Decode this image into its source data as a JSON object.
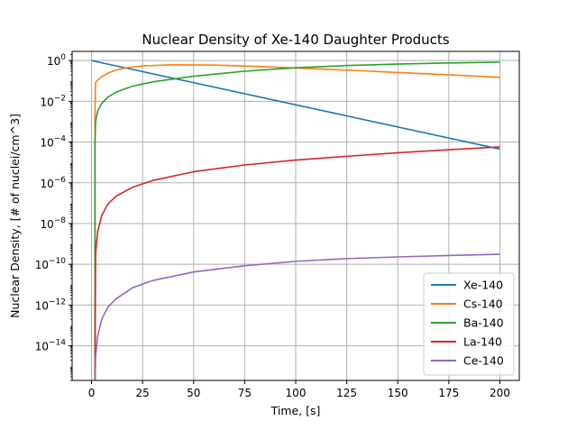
{
  "chart_data": {
    "type": "line",
    "title": "Nuclear Density of Xe-140 Daughter Products",
    "xlabel": "Time, [s]",
    "ylabel": "Nuclear Density, [# of nuclei/cm^3]",
    "xlim": [
      -9.5,
      209.5
    ],
    "ylim_log10": [
      -15.7,
      0.45
    ],
    "yscale": "log",
    "grid": true,
    "legend_position": "lower-right",
    "x_ticks": [
      {
        "value": 0,
        "label": "0"
      },
      {
        "value": 25,
        "label": "25"
      },
      {
        "value": 50,
        "label": "50"
      },
      {
        "value": 75,
        "label": "75"
      },
      {
        "value": 100,
        "label": "100"
      },
      {
        "value": 125,
        "label": "125"
      },
      {
        "value": 150,
        "label": "150"
      },
      {
        "value": 175,
        "label": "175"
      },
      {
        "value": 200,
        "label": "200"
      }
    ],
    "y_ticks": [
      {
        "exp": 0,
        "base": "10",
        "power": "0"
      },
      {
        "exp": -2,
        "base": "10",
        "power": "−2"
      },
      {
        "exp": -4,
        "base": "10",
        "power": "−4"
      },
      {
        "exp": -6,
        "base": "10",
        "power": "−6"
      },
      {
        "exp": -8,
        "base": "10",
        "power": "−8"
      },
      {
        "exp": -10,
        "base": "10",
        "power": "−10"
      },
      {
        "exp": -12,
        "base": "10",
        "power": "−12"
      },
      {
        "exp": -14,
        "base": "10",
        "power": "−14"
      }
    ],
    "series": [
      {
        "name": "Xe-140",
        "color": "#1f77b4",
        "x": [
          0,
          200
        ],
        "y": [
          1.0,
          4.5e-05
        ]
      },
      {
        "name": "Cs-140",
        "color": "#ff7f0e",
        "x": [
          1.7,
          2,
          3,
          5,
          8,
          12,
          17,
          25,
          40,
          60,
          80,
          100,
          125,
          150,
          175,
          200
        ],
        "y": [
          0.003,
          0.085,
          0.11,
          0.16,
          0.24,
          0.34,
          0.44,
          0.55,
          0.62,
          0.6,
          0.52,
          0.43,
          0.34,
          0.26,
          0.2,
          0.15
        ]
      },
      {
        "name": "Ba-140",
        "color": "#2ca02c",
        "x": [
          1.7,
          2,
          3,
          5,
          8,
          12,
          20,
          30,
          50,
          75,
          100,
          125,
          150,
          175,
          200
        ],
        "y": [
          0.0001,
          0.001,
          0.0033,
          0.0078,
          0.016,
          0.028,
          0.055,
          0.09,
          0.17,
          0.3,
          0.44,
          0.57,
          0.67,
          0.76,
          0.83
        ]
      },
      {
        "name": "La-140",
        "color": "#d62728",
        "x": [
          1.7,
          2,
          3,
          5,
          8,
          12,
          20,
          30,
          50,
          75,
          100,
          125,
          150,
          175,
          200
        ],
        "y": [
          1.5e-15,
          3.5e-10,
          4e-09,
          2.5e-08,
          9e-08,
          2.2e-07,
          6e-07,
          1.3e-06,
          3.5e-06,
          7.5e-06,
          1.3e-05,
          2e-05,
          3e-05,
          4.2e-05,
          5.8e-05
        ]
      },
      {
        "name": "Ce-140",
        "color": "#9467bd",
        "x": [
          1.7,
          2,
          3,
          5,
          8,
          12,
          20,
          30,
          50,
          75,
          100,
          125,
          150,
          175,
          200
        ],
        "y": [
          1e-16,
          3e-15,
          3e-14,
          2e-13,
          8e-13,
          2e-12,
          7e-12,
          1.6e-11,
          4.2e-11,
          8.5e-11,
          1.4e-10,
          1.9e-10,
          2.3e-10,
          2.7e-10,
          3.1e-10
        ]
      }
    ]
  }
}
